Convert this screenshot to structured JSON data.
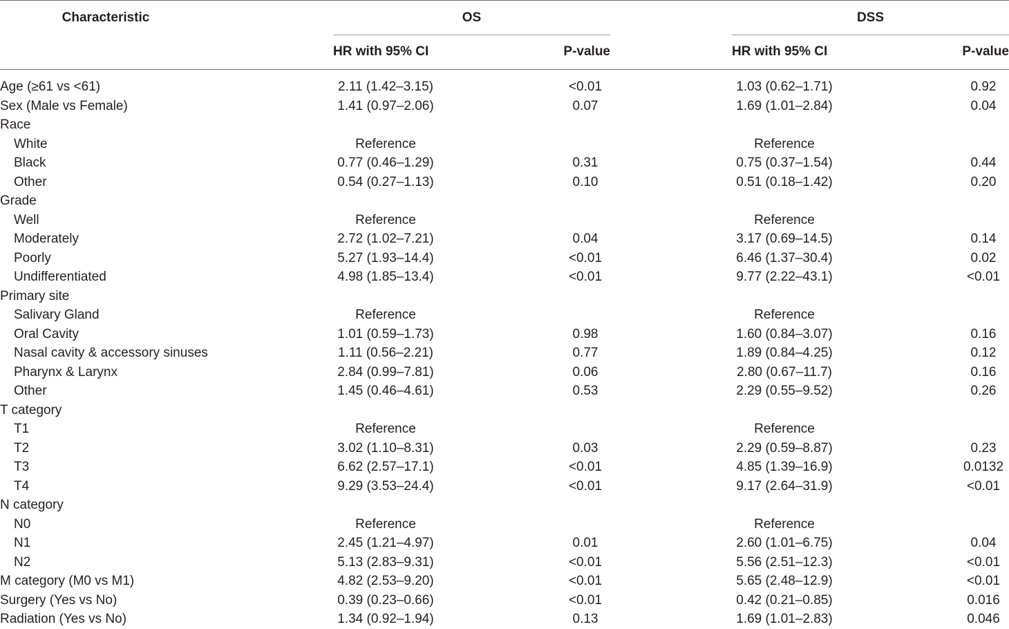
{
  "header": {
    "characteristic": "Characteristic",
    "os": "OS",
    "dss": "DSS",
    "os_hr": "HR with 95% CI",
    "os_p": "P-value",
    "dss_hr": "HR with 95% CI",
    "dss_p": "P-value"
  },
  "rows": [
    {
      "label": "Age (≥61 vs <61)",
      "os_hr": "2.11 (1.42–3.15)",
      "os_p": "<0.01",
      "dss_hr": "1.03 (0.62–1.71)",
      "dss_p": "0.92"
    },
    {
      "label": "Sex (Male vs Female)",
      "os_hr": "1.41 (0.97–2.06)",
      "os_p": "0.07",
      "dss_hr": "1.69 (1.01–2.84)",
      "dss_p": "0.04"
    },
    {
      "label": "Race",
      "os_hr": "",
      "os_p": "",
      "dss_hr": "",
      "dss_p": ""
    },
    {
      "label": "White",
      "os_hr": "Reference",
      "os_p": "",
      "dss_hr": "Reference",
      "dss_p": ""
    },
    {
      "label": "Black",
      "os_hr": "0.77 (0.46–1.29)",
      "os_p": "0.31",
      "dss_hr": "0.75 (0.37–1.54)",
      "dss_p": "0.44"
    },
    {
      "label": "Other",
      "os_hr": "0.54 (0.27–1.13)",
      "os_p": "0.10",
      "dss_hr": "0.51 (0.18–1.42)",
      "dss_p": "0.20"
    },
    {
      "label": "Grade",
      "os_hr": "",
      "os_p": "",
      "dss_hr": "",
      "dss_p": ""
    },
    {
      "label": "Well",
      "os_hr": "Reference",
      "os_p": "",
      "dss_hr": "Reference",
      "dss_p": ""
    },
    {
      "label": "Moderately",
      "os_hr": "2.72 (1.02–7.21)",
      "os_p": "0.04",
      "dss_hr": "3.17 (0.69–14.5)",
      "dss_p": "0.14"
    },
    {
      "label": "Poorly",
      "os_hr": "5.27 (1.93–14.4)",
      "os_p": "<0.01",
      "dss_hr": "6.46 (1.37–30.4)",
      "dss_p": "0.02"
    },
    {
      "label": "Undifferentiated",
      "os_hr": "4.98 (1.85–13.4)",
      "os_p": "<0.01",
      "dss_hr": "9.77 (2.22–43.1)",
      "dss_p": "<0.01"
    },
    {
      "label": "Primary site",
      "os_hr": "",
      "os_p": "",
      "dss_hr": "",
      "dss_p": ""
    },
    {
      "label": "Salivary Gland",
      "os_hr": "Reference",
      "os_p": "",
      "dss_hr": "Reference",
      "dss_p": ""
    },
    {
      "label": "Oral Cavity",
      "os_hr": "1.01 (0.59–1.73)",
      "os_p": "0.98",
      "dss_hr": "1.60 (0.84–3.07)",
      "dss_p": "0.16"
    },
    {
      "label": "Nasal cavity & accessory sinuses",
      "os_hr": "1.11 (0.56–2.21)",
      "os_p": "0.77",
      "dss_hr": "1.89 (0.84–4.25)",
      "dss_p": "0.12"
    },
    {
      "label": "Pharynx & Larynx",
      "os_hr": "2.84 (0.99–7.81)",
      "os_p": "0.06",
      "dss_hr": "2.80 (0.67–11.7)",
      "dss_p": "0.16"
    },
    {
      "label": "Other",
      "os_hr": "1.45 (0.46–4.61)",
      "os_p": "0.53",
      "dss_hr": "2.29 (0.55–9.52)",
      "dss_p": "0.26"
    },
    {
      "label": "T category",
      "os_hr": "",
      "os_p": "",
      "dss_hr": "",
      "dss_p": ""
    },
    {
      "label": "T1",
      "os_hr": "Reference",
      "os_p": "",
      "dss_hr": "Reference",
      "dss_p": ""
    },
    {
      "label": "T2",
      "os_hr": "3.02 (1.10–8.31)",
      "os_p": "0.03",
      "dss_hr": "2.29 (0.59–8.87)",
      "dss_p": "0.23"
    },
    {
      "label": "T3",
      "os_hr": "6.62 (2.57–17.1)",
      "os_p": "<0.01",
      "dss_hr": "4.85 (1.39–16.9)",
      "dss_p": "0.0132"
    },
    {
      "label": "T4",
      "os_hr": "9.29 (3.53–24.4)",
      "os_p": "<0.01",
      "dss_hr": "9.17 (2.64–31.9)",
      "dss_p": "<0.01"
    },
    {
      "label": "N category",
      "os_hr": "",
      "os_p": "",
      "dss_hr": "",
      "dss_p": ""
    },
    {
      "label": "N0",
      "os_hr": "Reference",
      "os_p": "",
      "dss_hr": "Reference",
      "dss_p": ""
    },
    {
      "label": "N1",
      "os_hr": "2.45 (1.21–4.97)",
      "os_p": "0.01",
      "dss_hr": "2.60 (1.01–6.75)",
      "dss_p": "0.04"
    },
    {
      "label": "N2",
      "os_hr": "5.13 (2.83–9.31)",
      "os_p": "<0.01",
      "dss_hr": "5.56 (2.51–12.3)",
      "dss_p": "<0.01"
    },
    {
      "label": "M category (M0 vs M1)",
      "os_hr": "4.82 (2.53–9.20)",
      "os_p": "<0.01",
      "dss_hr": "5.65 (2.48–12.9)",
      "dss_p": "<0.01"
    },
    {
      "label": "Surgery (Yes vs No)",
      "os_hr": "0.39 (0.23–0.66)",
      "os_p": "<0.01",
      "dss_hr": "0.42 (0.21–0.85)",
      "dss_p": "0.016"
    },
    {
      "label": "Radiation (Yes vs No)",
      "os_hr": "1.34 (0.92–1.94)",
      "os_p": "0.13",
      "dss_hr": "1.69 (1.01–2.83)",
      "dss_p": "0.046"
    }
  ]
}
